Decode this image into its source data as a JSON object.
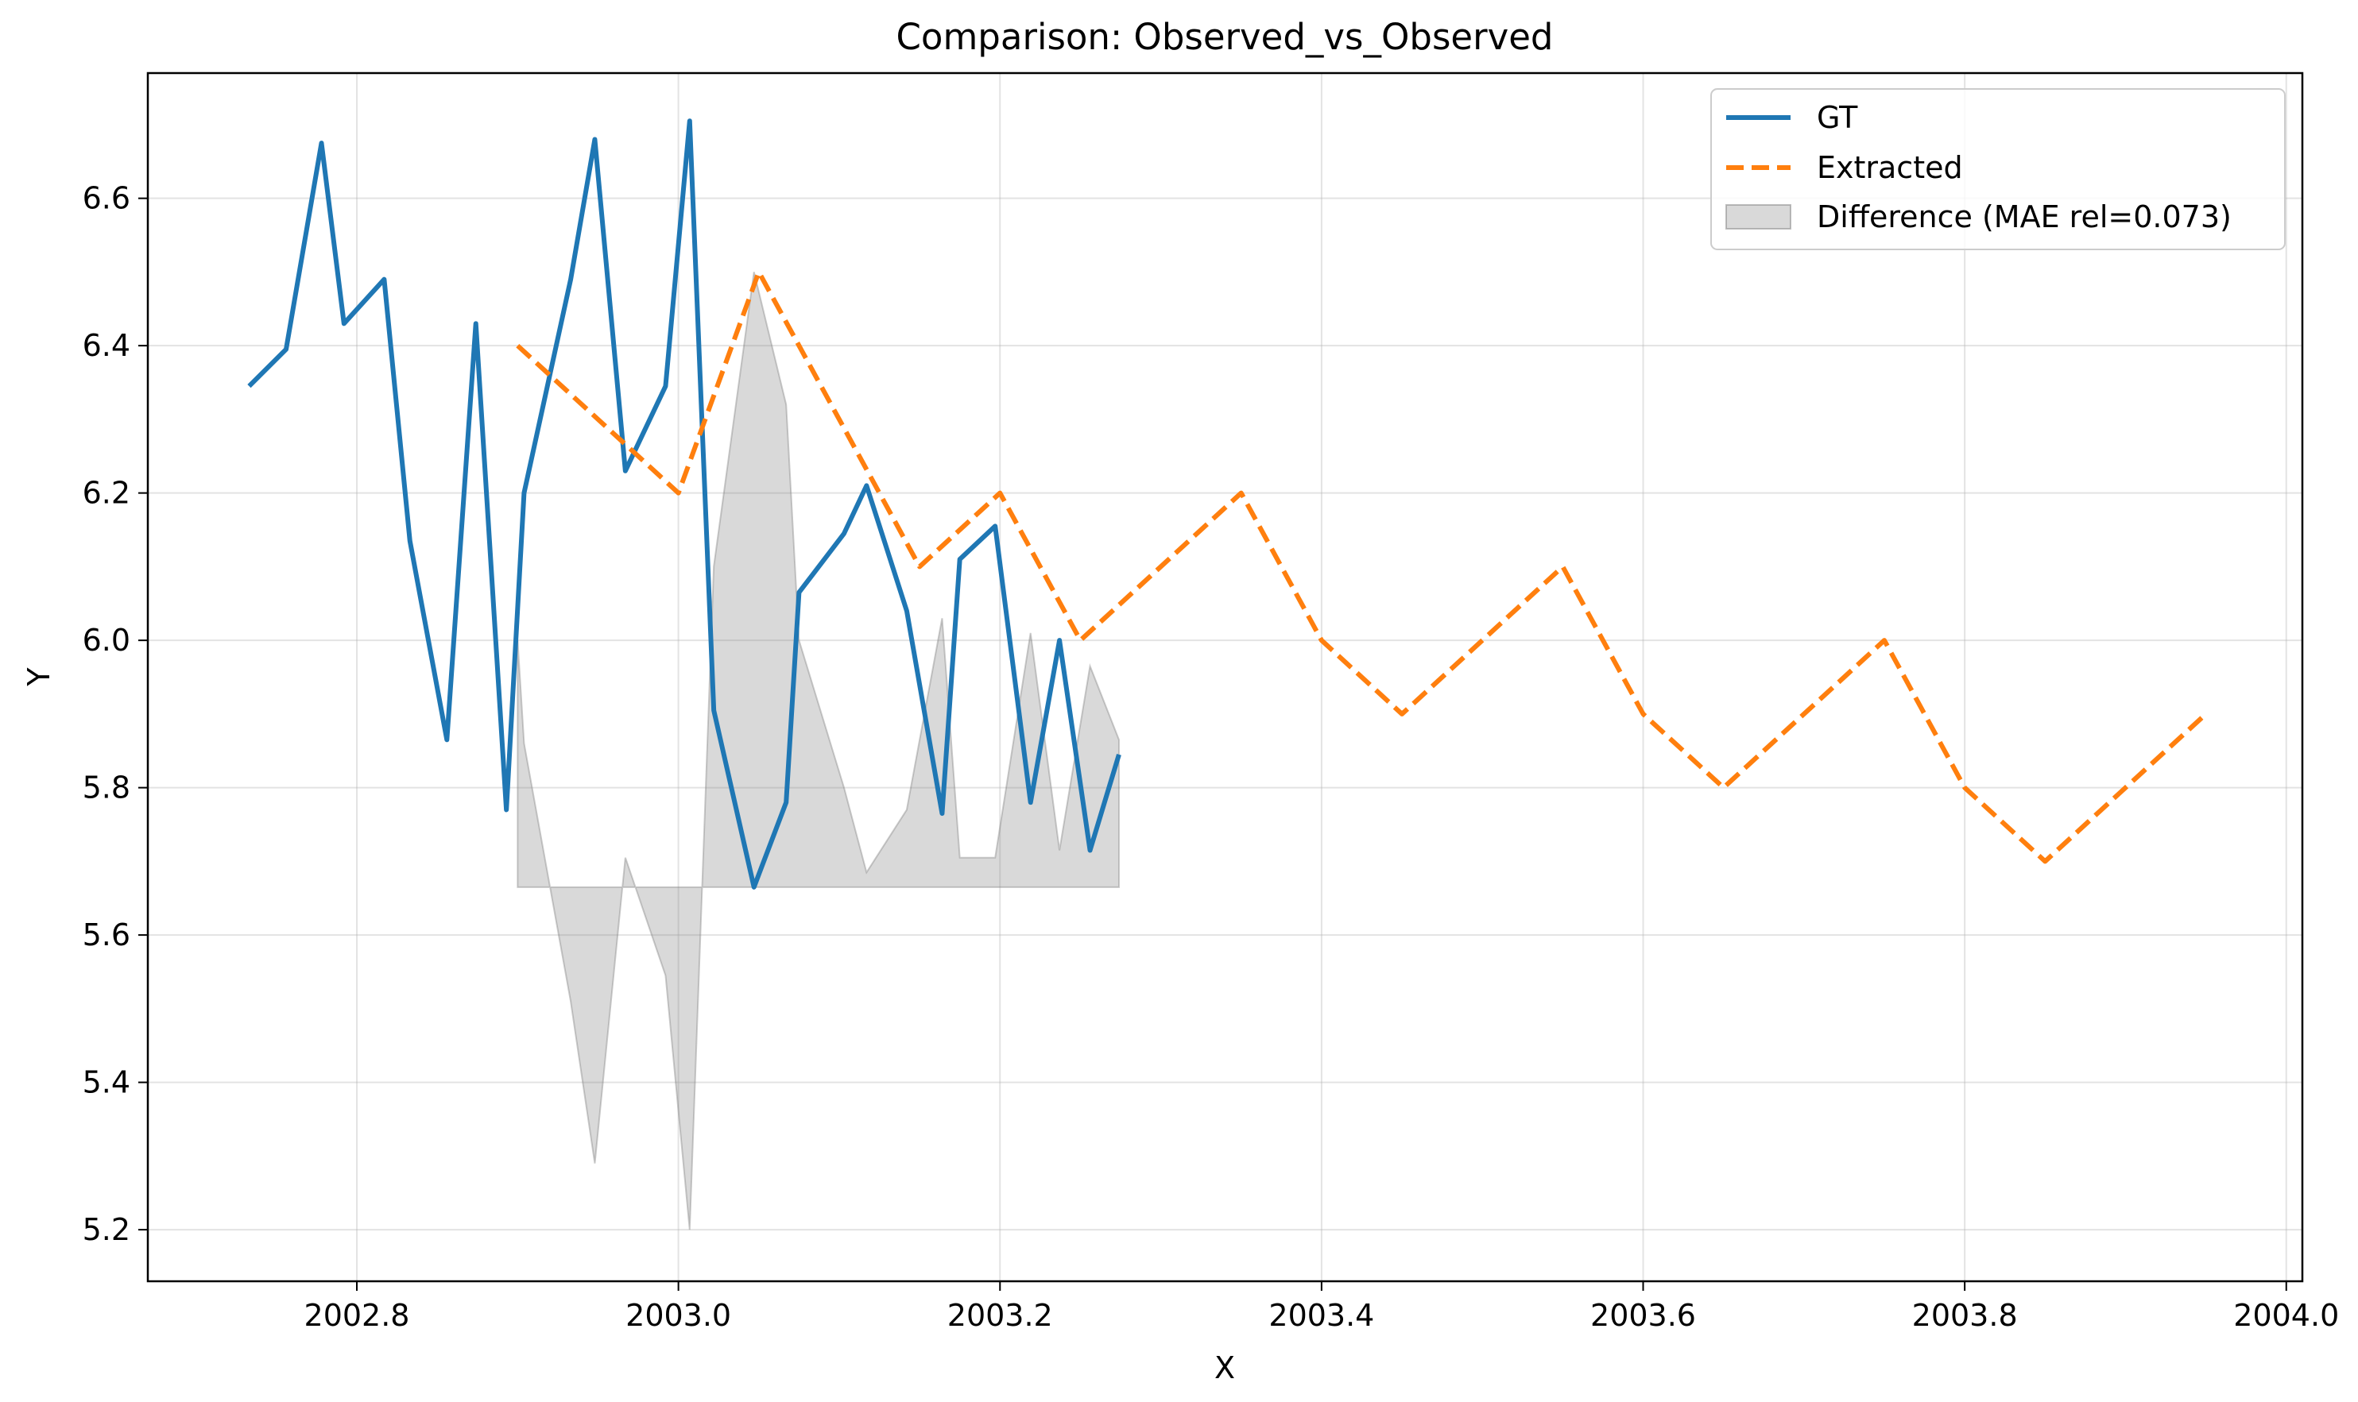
{
  "chart_data": {
    "type": "line",
    "title": "Comparison: Observed_vs_Observed",
    "xlabel": "X",
    "ylabel": "Y",
    "xlim": [
      2002.67,
      2004.01
    ],
    "ylim": [
      5.13,
      6.77
    ],
    "xticks": [
      2002.8,
      2003.0,
      2003.2,
      2003.4,
      2003.6,
      2003.8,
      2004.0
    ],
    "xtick_labels": [
      "2002.8",
      "2003.0",
      "2003.2",
      "2003.4",
      "2003.6",
      "2003.8",
      "2004.0"
    ],
    "yticks": [
      5.2,
      5.4,
      5.6,
      5.8,
      6.0,
      6.2,
      6.4,
      6.6
    ],
    "ytick_labels": [
      "5.2",
      "5.4",
      "5.6",
      "5.8",
      "6.0",
      "6.2",
      "6.4",
      "6.6"
    ],
    "grid": true,
    "legend_position": "top-right",
    "series": [
      {
        "name": "GT",
        "color": "#1f77b4",
        "style": "solid",
        "x": [
          2002.733,
          2002.756,
          2002.778,
          2002.792,
          2002.817,
          2002.833,
          2002.856,
          2002.874,
          2002.893,
          2002.904,
          2002.933,
          2002.948,
          2002.967,
          2002.992,
          2003.007,
          2003.022,
          2003.047,
          2003.067,
          2003.075,
          2003.103,
          2003.117,
          2003.142,
          2003.164,
          2003.175,
          2003.197,
          2003.219,
          2003.237,
          2003.256,
          2003.274
        ],
        "y": [
          6.345,
          6.395,
          6.675,
          6.43,
          6.49,
          6.135,
          5.865,
          6.43,
          5.77,
          6.2,
          6.49,
          6.68,
          6.23,
          6.345,
          6.705,
          5.905,
          5.665,
          5.78,
          6.065,
          6.145,
          6.21,
          6.04,
          5.765,
          6.11,
          6.155,
          5.78,
          6.0,
          5.715,
          5.845
        ]
      },
      {
        "name": "Extracted",
        "color": "#ff7f0e",
        "style": "dashed",
        "x": [
          2002.9,
          2003.0,
          2003.05,
          2003.15,
          2003.2,
          2003.25,
          2003.35,
          2003.4,
          2003.45,
          2003.55,
          2003.6,
          2003.65,
          2003.75,
          2003.8,
          2003.85,
          2003.95
        ],
        "y": [
          6.4,
          6.2,
          6.5,
          6.1,
          6.2,
          6.0,
          6.2,
          6.0,
          5.9,
          6.1,
          5.9,
          5.8,
          6.0,
          5.8,
          5.7,
          5.9
        ]
      },
      {
        "name": "Difference (MAE rel=0.073)",
        "color": "#808080",
        "style": "fill",
        "baseline": 5.665,
        "x": [
          2002.9,
          2002.904,
          2002.933,
          2002.948,
          2002.967,
          2002.992,
          2003.007,
          2003.022,
          2003.047,
          2003.067,
          2003.075,
          2003.103,
          2003.117,
          2003.142,
          2003.164,
          2003.175,
          2003.197,
          2003.219,
          2003.237,
          2003.256,
          2003.274
        ],
        "y": [
          6.0,
          5.86,
          5.51,
          5.29,
          5.705,
          5.545,
          5.2,
          6.1,
          6.5,
          6.32,
          6.0,
          5.8,
          5.685,
          5.77,
          6.03,
          5.705,
          5.705,
          6.01,
          5.715,
          5.965,
          5.865
        ]
      }
    ]
  }
}
